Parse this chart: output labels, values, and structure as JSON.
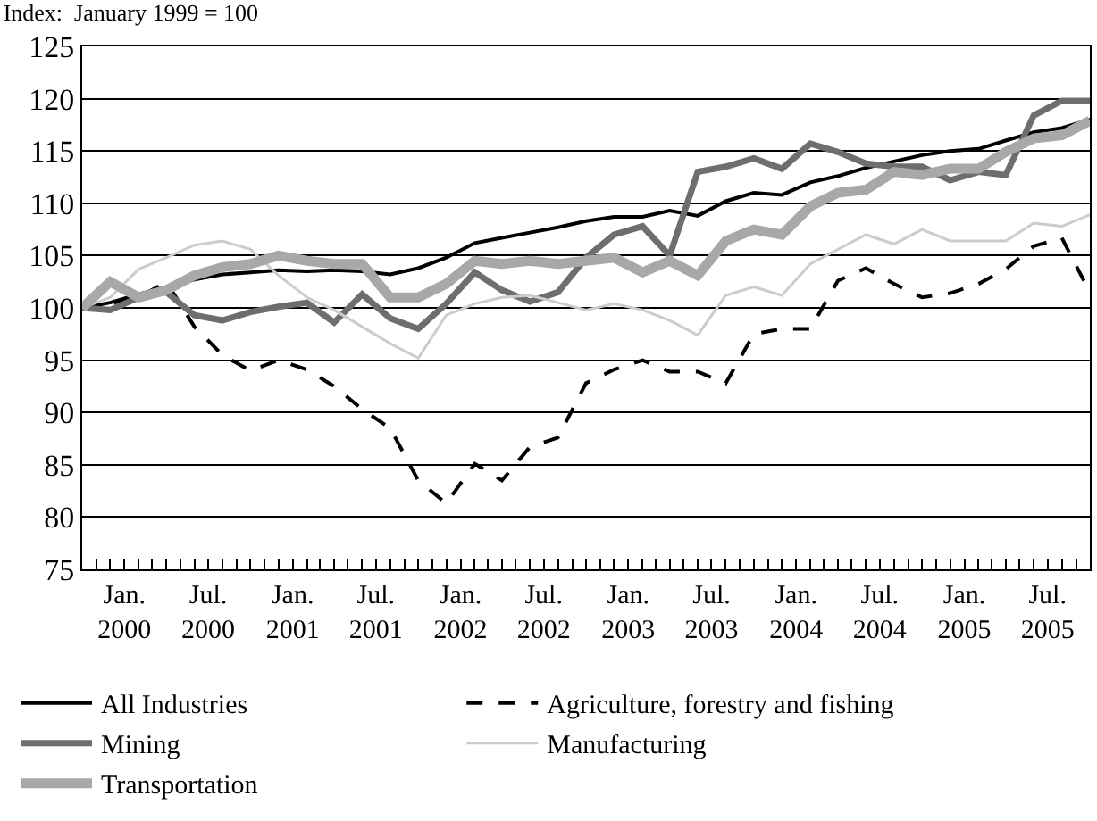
{
  "chart_data": {
    "type": "line",
    "title": "Index:  January 1999 = 100",
    "x": [
      "1999-10",
      "1999-12",
      "2000-02",
      "2000-04",
      "2000-06",
      "2000-08",
      "2000-10",
      "2000-12",
      "2001-02",
      "2001-04",
      "2001-06",
      "2001-08",
      "2001-10",
      "2001-12",
      "2002-02",
      "2002-04",
      "2002-06",
      "2002-08",
      "2002-10",
      "2002-12",
      "2003-02",
      "2003-04",
      "2003-06",
      "2003-08",
      "2003-10",
      "2003-12",
      "2004-02",
      "2004-04",
      "2004-06",
      "2004-08",
      "2004-10",
      "2004-12",
      "2005-02",
      "2005-04",
      "2005-06",
      "2005-08",
      "2005-10"
    ],
    "series": [
      {
        "name": "All Industries",
        "color": "#000000",
        "line_style": "solid",
        "values": [
          100,
          100.5,
          101.3,
          102,
          102.7,
          103.2,
          103.4,
          103.6,
          103.5,
          103.6,
          103.5,
          103.2,
          103.8,
          104.8,
          106.2,
          106.7,
          107.2,
          107.7,
          108.3,
          108.7,
          108.7,
          109.3,
          108.8,
          110.2,
          111,
          110.8,
          112,
          112.6,
          113.4,
          114,
          114.6,
          115,
          115.2,
          116,
          116.8,
          117.2,
          118
        ]
      },
      {
        "name": "Agriculture, forestry and fishing",
        "color": "#000000",
        "line_style": "dashed",
        "values": [
          100,
          100.4,
          101,
          102.5,
          98.2,
          95.5,
          94,
          95,
          94.1,
          92.5,
          90.3,
          88.5,
          83.5,
          81.3,
          85.1,
          83.5,
          86.7,
          87.6,
          92.8,
          94.1,
          95,
          93.9,
          93.9,
          92.8,
          97.5,
          98,
          98,
          102.6,
          103.8,
          102.3,
          101,
          101.4,
          102.3,
          103.7,
          105.9,
          106.7,
          101.5
        ]
      },
      {
        "name": "Mining",
        "color": "#6e6e6e",
        "line_style": "solid",
        "values": [
          100,
          99.8,
          101,
          101.5,
          99.3,
          98.8,
          99.6,
          100.1,
          100.5,
          98.6,
          101.3,
          99,
          98,
          100.4,
          103.4,
          101.7,
          100.6,
          101.5,
          104.8,
          107,
          107.8,
          105,
          113,
          113.5,
          114.3,
          113.3,
          115.7,
          114.9,
          113.8,
          113.5,
          113.5,
          112.2,
          113,
          112.7,
          118.4,
          119.8,
          119.8
        ]
      },
      {
        "name": "Manufacturing",
        "color": "#cccccc",
        "line_style": "solid",
        "values": [
          100,
          101,
          103.7,
          104.8,
          106,
          106.4,
          105.6,
          103.1,
          101,
          99.8,
          98.2,
          96.6,
          95.2,
          99.3,
          100.4,
          101,
          101.2,
          100.5,
          99.8,
          100.4,
          99.8,
          98.8,
          97.4,
          101.2,
          102,
          101.2,
          104.2,
          105.6,
          107,
          106.1,
          107.5,
          106.4,
          106.4,
          106.4,
          108.1,
          107.8,
          108.9
        ]
      },
      {
        "name": "Transportation",
        "color": "#a8a8a8",
        "line_style": "solid",
        "values": [
          100,
          102.5,
          101,
          101.7,
          103.1,
          103.9,
          104.2,
          105,
          104.5,
          104.2,
          104.2,
          101,
          101,
          102.3,
          104.5,
          104.2,
          104.5,
          104.2,
          104.5,
          104.8,
          103.4,
          104.5,
          103.1,
          106.4,
          107.5,
          107,
          109.7,
          111,
          111.3,
          113,
          112.7,
          113.3,
          113.3,
          114.9,
          116.2,
          116.5,
          117.9
        ]
      }
    ],
    "xlim": [
      "1999-10",
      "2005-10"
    ],
    "xticks": [
      {
        "value": "1999-10",
        "label": null
      },
      {
        "value": "1999-11",
        "label": null
      },
      {
        "value": "1999-12",
        "label": null
      },
      {
        "value": "2000-01",
        "label": "Jan.\n2000"
      },
      {
        "value": "2000-02",
        "label": null
      },
      {
        "value": "2000-03",
        "label": null
      },
      {
        "value": "2000-04",
        "label": null
      },
      {
        "value": "2000-05",
        "label": null
      },
      {
        "value": "2000-06",
        "label": null
      },
      {
        "value": "2000-07",
        "label": "Jul.\n2000"
      },
      {
        "value": "2000-08",
        "label": null
      },
      {
        "value": "2000-09",
        "label": null
      },
      {
        "value": "2000-10",
        "label": null
      },
      {
        "value": "2000-11",
        "label": null
      },
      {
        "value": "2000-12",
        "label": null
      },
      {
        "value": "2001-01",
        "label": "Jan.\n2001"
      },
      {
        "value": "2001-02",
        "label": null
      },
      {
        "value": "2001-03",
        "label": null
      },
      {
        "value": "2001-04",
        "label": null
      },
      {
        "value": "2001-05",
        "label": null
      },
      {
        "value": "2001-06",
        "label": null
      },
      {
        "value": "2001-07",
        "label": "Jul.\n2001"
      },
      {
        "value": "2001-08",
        "label": null
      },
      {
        "value": "2001-09",
        "label": null
      },
      {
        "value": "2001-10",
        "label": null
      },
      {
        "value": "2001-11",
        "label": null
      },
      {
        "value": "2001-12",
        "label": null
      },
      {
        "value": "2002-01",
        "label": "Jan.\n2002"
      },
      {
        "value": "2002-02",
        "label": null
      },
      {
        "value": "2002-03",
        "label": null
      },
      {
        "value": "2002-04",
        "label": null
      },
      {
        "value": "2002-05",
        "label": null
      },
      {
        "value": "2002-06",
        "label": null
      },
      {
        "value": "2002-07",
        "label": "Jul.\n2002"
      },
      {
        "value": "2002-08",
        "label": null
      },
      {
        "value": "2002-09",
        "label": null
      },
      {
        "value": "2002-10",
        "label": null
      },
      {
        "value": "2002-11",
        "label": null
      },
      {
        "value": "2002-12",
        "label": null
      },
      {
        "value": "2003-01",
        "label": "Jan.\n2003"
      },
      {
        "value": "2003-02",
        "label": null
      },
      {
        "value": "2003-03",
        "label": null
      },
      {
        "value": "2003-04",
        "label": null
      },
      {
        "value": "2003-05",
        "label": null
      },
      {
        "value": "2003-06",
        "label": null
      },
      {
        "value": "2003-07",
        "label": "Jul.\n2003"
      },
      {
        "value": "2003-08",
        "label": null
      },
      {
        "value": "2003-09",
        "label": null
      },
      {
        "value": "2003-10",
        "label": null
      },
      {
        "value": "2003-11",
        "label": null
      },
      {
        "value": "2003-12",
        "label": null
      },
      {
        "value": "2004-01",
        "label": "Jan.\n2004"
      },
      {
        "value": "2004-02",
        "label": null
      },
      {
        "value": "2004-03",
        "label": null
      },
      {
        "value": "2004-04",
        "label": null
      },
      {
        "value": "2004-05",
        "label": null
      },
      {
        "value": "2004-06",
        "label": null
      },
      {
        "value": "2004-07",
        "label": "Jul.\n2004"
      },
      {
        "value": "2004-08",
        "label": null
      },
      {
        "value": "2004-09",
        "label": null
      },
      {
        "value": "2004-10",
        "label": null
      },
      {
        "value": "2004-11",
        "label": null
      },
      {
        "value": "2004-12",
        "label": null
      },
      {
        "value": "2005-01",
        "label": "Jan.\n2005"
      },
      {
        "value": "2005-02",
        "label": null
      },
      {
        "value": "2005-03",
        "label": null
      },
      {
        "value": "2005-04",
        "label": null
      },
      {
        "value": "2005-05",
        "label": null
      },
      {
        "value": "2005-06",
        "label": null
      },
      {
        "value": "2005-07",
        "label": "Jul.\n2005"
      },
      {
        "value": "2005-08",
        "label": null
      },
      {
        "value": "2005-09",
        "label": null
      },
      {
        "value": "2005-10",
        "label": null
      }
    ],
    "ylim": [
      75,
      125
    ],
    "yticks": [
      75,
      80,
      85,
      90,
      95,
      100,
      105,
      110,
      115,
      120,
      125
    ],
    "grid": "y",
    "legend": "bottom",
    "marker": "none"
  }
}
